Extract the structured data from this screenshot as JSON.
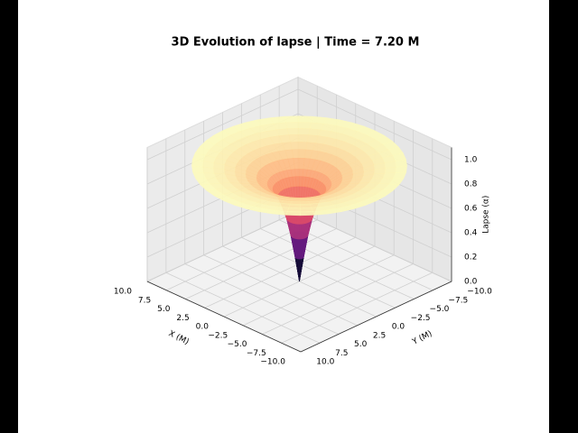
{
  "chart_data": {
    "type": "surface3d",
    "title": "3D Evolution of lapse | Time = 7.20 M",
    "xlabel": "X (M)",
    "ylabel": "Y (M)",
    "zlabel": "Lapse (α)",
    "colormap": "magma",
    "surface": {
      "r": [
        0,
        0.4,
        0.8,
        1.2,
        1.6,
        2.0,
        2.5,
        3,
        4,
        5,
        6,
        7,
        8,
        9,
        10
      ],
      "values": [
        0.0,
        0.2,
        0.38,
        0.52,
        0.62,
        0.7,
        0.76,
        0.8,
        0.85,
        0.88,
        0.9,
        0.92,
        0.93,
        0.94,
        0.95
      ]
    },
    "xlim": [
      -10,
      10
    ],
    "ylim": [
      -10,
      10
    ],
    "zlim": [
      0,
      1.1
    ],
    "xticks": [
      {
        "value": 10,
        "label": "10.0"
      },
      {
        "value": 7.5,
        "label": "7.5"
      },
      {
        "value": 5,
        "label": "5.0"
      },
      {
        "value": 2.5,
        "label": "2.5"
      },
      {
        "value": 0,
        "label": "0.0"
      },
      {
        "value": -2.5,
        "label": "−2.5"
      },
      {
        "value": -5,
        "label": "−5.0"
      },
      {
        "value": -7.5,
        "label": "−7.5"
      },
      {
        "value": -10,
        "label": "−10.0"
      }
    ],
    "yticks": [
      {
        "value": 10,
        "label": "10.0"
      },
      {
        "value": 7.5,
        "label": "7.5"
      },
      {
        "value": 5,
        "label": "5.0"
      },
      {
        "value": 2.5,
        "label": "2.5"
      },
      {
        "value": 0,
        "label": "0.0"
      },
      {
        "value": -2.5,
        "label": "−2.5"
      },
      {
        "value": -5,
        "label": "−5.0"
      },
      {
        "value": -7.5,
        "label": "−7.5"
      },
      {
        "value": -10,
        "label": "−10.0"
      }
    ],
    "zticks": [
      {
        "value": 0,
        "label": "0.0"
      },
      {
        "value": 0.2,
        "label": "0.2"
      },
      {
        "value": 0.4,
        "label": "0.4"
      },
      {
        "value": 0.6,
        "label": "0.6"
      },
      {
        "value": 0.8,
        "label": "0.8"
      },
      {
        "value": 1.0,
        "label": "1.0"
      }
    ],
    "grid": true
  }
}
